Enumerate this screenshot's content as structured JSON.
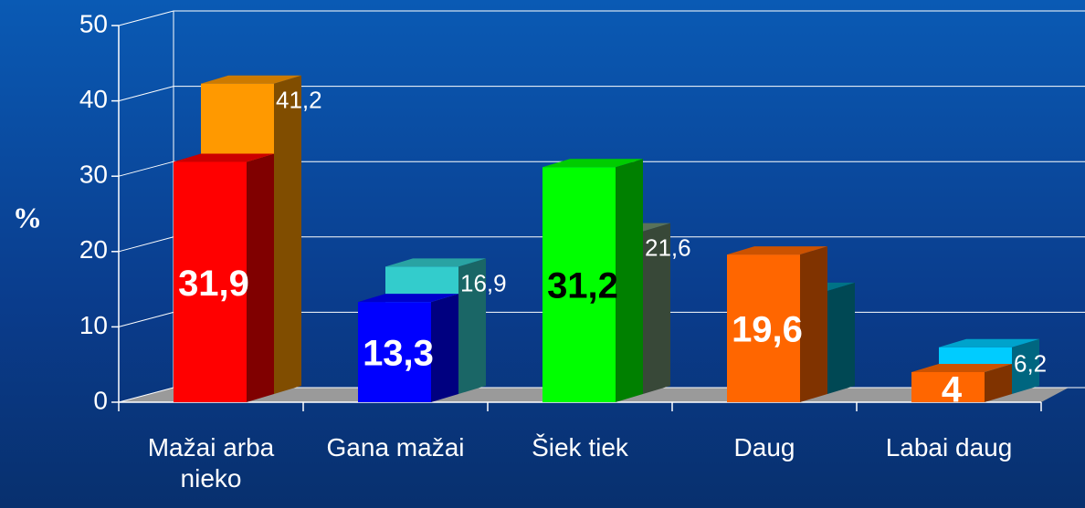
{
  "chart_data": {
    "type": "bar3d",
    "y_label": "%",
    "categories": [
      "Mažai arba nieko",
      "Gana mažai",
      "Šiek tiek",
      "Daug",
      "Labai daug"
    ],
    "series": [
      {
        "colors": [
          "#ff9900",
          "#33cccc",
          "#6f8f6f",
          "#008fa8",
          "#00ccff"
        ],
        "values": [
          41.2,
          16.9,
          21.6,
          13.7,
          6.2
        ],
        "value_labels": [
          "41,2",
          "16,9",
          "21,6",
          null,
          "6,2"
        ]
      },
      {
        "colors": [
          "#ff0000",
          "#0000ff",
          "#00ff00",
          "#ff6600",
          "#ff6600"
        ],
        "label_colors": [
          "#ffffff",
          "#ffffff",
          "#000000",
          "#ffffff",
          "#ffffff"
        ],
        "values": [
          31.9,
          13.3,
          31.2,
          19.6,
          4
        ],
        "value_labels": [
          "31,9",
          "13,3",
          "31,2",
          "19,6",
          "4"
        ]
      }
    ],
    "ylim": [
      0,
      50
    ],
    "yticks": [
      0,
      10,
      20,
      30,
      40,
      50
    ],
    "grid": true
  }
}
